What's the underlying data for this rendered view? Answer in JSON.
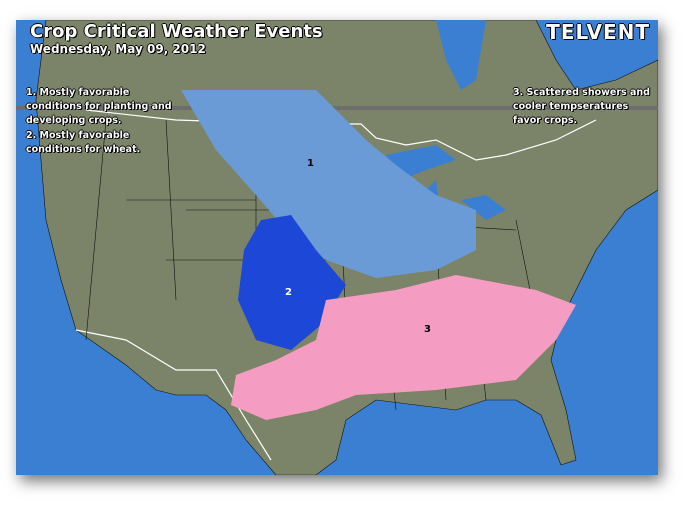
{
  "header": {
    "title": "Crop Critical Weather Events",
    "date": "Wednesday, May 09, 2012",
    "logo": "TELVENT"
  },
  "notes": [
    {
      "id": "1",
      "text": "1. Mostly favorable conditions for planting and developing crops."
    },
    {
      "id": "2",
      "text": "2. Mostly favorable conditions for wheat."
    },
    {
      "id": "3",
      "text": "3. Scattered showers and cooler tempseratures favor crops."
    }
  ],
  "regions": [
    {
      "label": "1",
      "color": "#6b9bd6"
    },
    {
      "label": "2",
      "color": "#1d47d6"
    },
    {
      "label": "3",
      "color": "#f59cc2"
    }
  ],
  "colors": {
    "ocean": "#3b7fd2",
    "land": "#7b8468",
    "borders": "#111111",
    "international_border": "#ffffff"
  }
}
